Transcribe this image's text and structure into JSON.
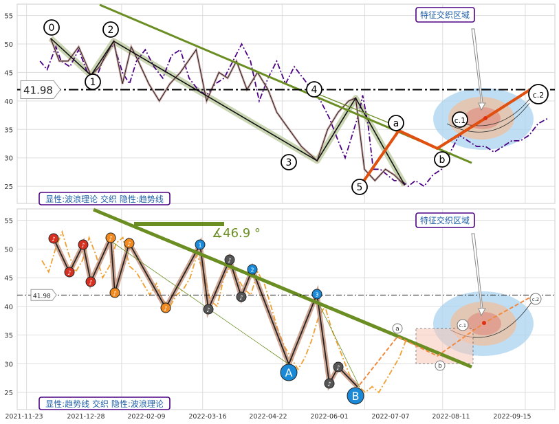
{
  "chart_data": [
    {
      "type": "line",
      "panel": "top",
      "ylim": [
        22,
        57
      ],
      "yticks": [
        25,
        30,
        35,
        40,
        45,
        50,
        55
      ],
      "grid": true,
      "hline": {
        "value": 41.98,
        "label": "41.98"
      },
      "legend_box": "显性:波浪理论 交织 隐性:趋势线",
      "feature_label": "特征交织区域",
      "price": [
        [
          6,
          47
        ],
        [
          10,
          45.5
        ],
        [
          15,
          49.5
        ],
        [
          18,
          47
        ],
        [
          23,
          46
        ],
        [
          28,
          49
        ],
        [
          33,
          45
        ],
        [
          38,
          44
        ],
        [
          43,
          48
        ],
        [
          48,
          50
        ],
        [
          53,
          45
        ],
        [
          57,
          43
        ],
        [
          61,
          47
        ],
        [
          66,
          49
        ],
        [
          71,
          46
        ],
        [
          76,
          44
        ],
        [
          81,
          48
        ],
        [
          86,
          49
        ],
        [
          91,
          44
        ],
        [
          96,
          42
        ],
        [
          101,
          41
        ],
        [
          106,
          43
        ],
        [
          111,
          44
        ],
        [
          116,
          47
        ],
        [
          121,
          50
        ],
        [
          126,
          47
        ],
        [
          131,
          40
        ],
        [
          136,
          44
        ],
        [
          141,
          47
        ],
        [
          146,
          43
        ],
        [
          151,
          46
        ],
        [
          156,
          44
        ],
        [
          161,
          42
        ],
        [
          166,
          40
        ],
        [
          171,
          37
        ],
        [
          176,
          33
        ],
        [
          180,
          30
        ],
        [
          184,
          34
        ],
        [
          188,
          38
        ],
        [
          190,
          41
        ],
        [
          193,
          36
        ],
        [
          196,
          28
        ],
        [
          200,
          28
        ],
        [
          204,
          27
        ],
        [
          208,
          26
        ],
        [
          212,
          26
        ],
        [
          216,
          25
        ],
        [
          220,
          26
        ],
        [
          225,
          25
        ],
        [
          230,
          27
        ],
        [
          235,
          28
        ],
        [
          240,
          31
        ],
        [
          245,
          34
        ],
        [
          250,
          33
        ],
        [
          255,
          32
        ],
        [
          260,
          32
        ],
        [
          265,
          31
        ],
        [
          270,
          32
        ],
        [
          275,
          33
        ],
        [
          280,
          33
        ],
        [
          285,
          34
        ],
        [
          290,
          36
        ],
        [
          296,
          37
        ]
      ],
      "wave_points": [
        {
          "label": "0",
          "x": 12,
          "y": 51
        },
        {
          "label": "1",
          "x": 35,
          "y": 44.5
        },
        {
          "label": "2",
          "x": 48,
          "y": 50.5
        },
        {
          "label": "3",
          "x": 164,
          "y": 29.5
        },
        {
          "label": "4",
          "x": 186,
          "y": 40.5
        },
        {
          "label": "5",
          "x": 214,
          "y": 25.2
        },
        {
          "label": "a",
          "x": 241,
          "y": 34
        },
        {
          "label": "b",
          "x": 265,
          "y": 30.7
        },
        {
          "label": "c.1",
          "x": 292,
          "y": 36.5
        },
        {
          "label": "c.2",
          "x": 322,
          "y": 42
        }
      ],
      "trend_line": [
        [
          54,
          57.5
        ],
        [
          286,
          27.8
        ]
      ],
      "upper_trend": [
        [
          50,
          62
        ],
        [
          240,
          34
        ]
      ]
    },
    {
      "type": "line",
      "panel": "bottom",
      "ylim": [
        22,
        57
      ],
      "yticks": [
        25,
        30,
        35,
        40,
        45,
        50,
        55
      ],
      "grid": true,
      "hline": {
        "value": 41.98,
        "label": "41.98"
      },
      "legend_box": "显性:趋势线 交织 隐性:波浪理论",
      "feature_label": "特征交织区域",
      "angle_label": "∡46.9 °",
      "point_labels": [
        "A",
        "B",
        "a",
        "b",
        "c.1",
        "c.2",
        "1",
        "2",
        "3",
        "4",
        "5",
        "♪"
      ],
      "price": [
        [
          0,
          48
        ],
        [
          4,
          46
        ],
        [
          8,
          50
        ],
        [
          12,
          53
        ],
        [
          16,
          49
        ],
        [
          20,
          46
        ],
        [
          24,
          48
        ],
        [
          28,
          52
        ],
        [
          32,
          49
        ],
        [
          36,
          45
        ],
        [
          40,
          47
        ],
        [
          44,
          51
        ],
        [
          48,
          52
        ],
        [
          52,
          47
        ],
        [
          56,
          46
        ],
        [
          60,
          44
        ],
        [
          64,
          42
        ],
        [
          68,
          44
        ],
        [
          72,
          41
        ],
        [
          76,
          40
        ],
        [
          80,
          42
        ],
        [
          84,
          43
        ],
        [
          88,
          45
        ],
        [
          92,
          49
        ],
        [
          96,
          46
        ],
        [
          100,
          41
        ],
        [
          104,
          40
        ],
        [
          108,
          45
        ],
        [
          112,
          47
        ],
        [
          116,
          45
        ],
        [
          120,
          43
        ],
        [
          124,
          42
        ],
        [
          128,
          46
        ],
        [
          132,
          44
        ],
        [
          136,
          40
        ],
        [
          140,
          36
        ],
        [
          144,
          33
        ],
        [
          148,
          31
        ],
        [
          152,
          29
        ],
        [
          156,
          31
        ],
        [
          160,
          34
        ],
        [
          164,
          38
        ],
        [
          168,
          40
        ],
        [
          172,
          36
        ],
        [
          176,
          33
        ],
        [
          180,
          30
        ],
        [
          184,
          27
        ],
        [
          188,
          26
        ],
        [
          192,
          25
        ],
        [
          196,
          26
        ],
        [
          200,
          25
        ],
        [
          204,
          27
        ],
        [
          208,
          29
        ],
        [
          212,
          31
        ],
        [
          216,
          34
        ]
      ],
      "trend_line": [
        [
          32,
          58
        ],
        [
          266,
          28.5
        ]
      ],
      "lower_trend": [
        [
          40,
          52
        ],
        [
          205,
          26
        ]
      ]
    }
  ],
  "x_axis": {
    "labels": [
      "2021-11-23",
      "2021-12-28",
      "2022-02-09",
      "2022-03-16",
      "2022-04-22",
      "2022-06-01",
      "2022-07-07",
      "2022-08-11",
      "2022-09-15"
    ]
  }
}
